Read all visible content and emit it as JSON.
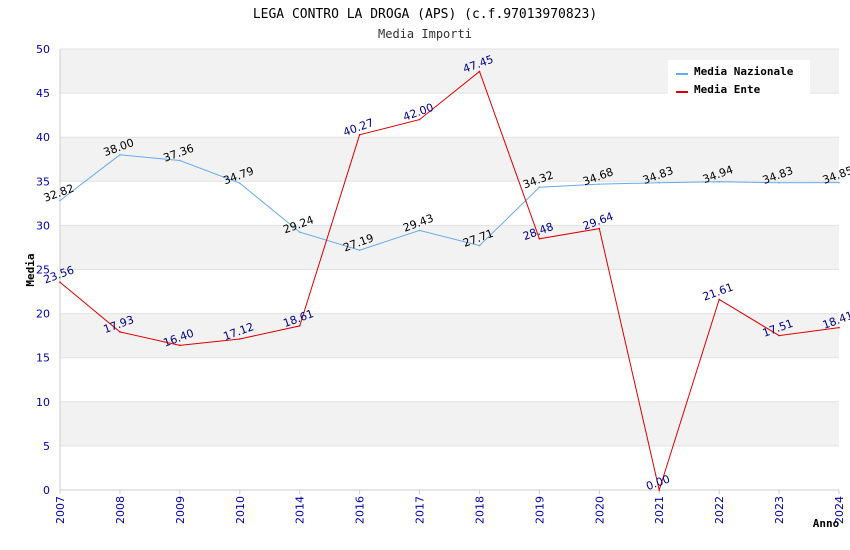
{
  "chart_data": {
    "type": "line",
    "title": "LEGA CONTRO LA DROGA (APS) (c.f.97013970823)",
    "subtitle": "Media Importi",
    "xlabel": "Anno",
    "ylabel": "Media",
    "ylim": [
      0,
      50
    ],
    "yticks": [
      "0",
      "5",
      "10",
      "15",
      "20",
      "25",
      "30",
      "35",
      "40",
      "45",
      "50"
    ],
    "categories": [
      "2007",
      "2008",
      "2009",
      "2010",
      "2014",
      "2016",
      "2017",
      "2018",
      "2019",
      "2020",
      "2021",
      "2022",
      "2023",
      "2024"
    ],
    "legend_position": "top-right",
    "series": [
      {
        "name": "Media Nazionale",
        "color": "#66aaee",
        "label_color": "#000000",
        "values": [
          32.82,
          38.0,
          37.36,
          34.79,
          29.24,
          27.19,
          29.43,
          27.71,
          34.32,
          34.68,
          34.83,
          34.94,
          34.83,
          34.85
        ],
        "labels": [
          "32.82",
          "38.00",
          "37.36",
          "34.79",
          "29.24",
          "27.19",
          "29.43",
          "27.71",
          "34.32",
          "34.68",
          "34.83",
          "34.94",
          "34.83",
          "34.85"
        ]
      },
      {
        "name": "Media Ente",
        "color": "#dd0000",
        "label_color": "#000088",
        "values": [
          23.56,
          17.93,
          16.4,
          17.12,
          18.61,
          40.27,
          42.0,
          47.45,
          28.48,
          29.64,
          0.0,
          21.61,
          17.51,
          18.41
        ],
        "labels": [
          "23.56",
          "17.93",
          "16.40",
          "17.12",
          "18.61",
          "40.27",
          "42.00",
          "47.45",
          "28.48",
          "29.64",
          "0.00",
          "21.61",
          "17.51",
          "18.41"
        ]
      }
    ]
  }
}
